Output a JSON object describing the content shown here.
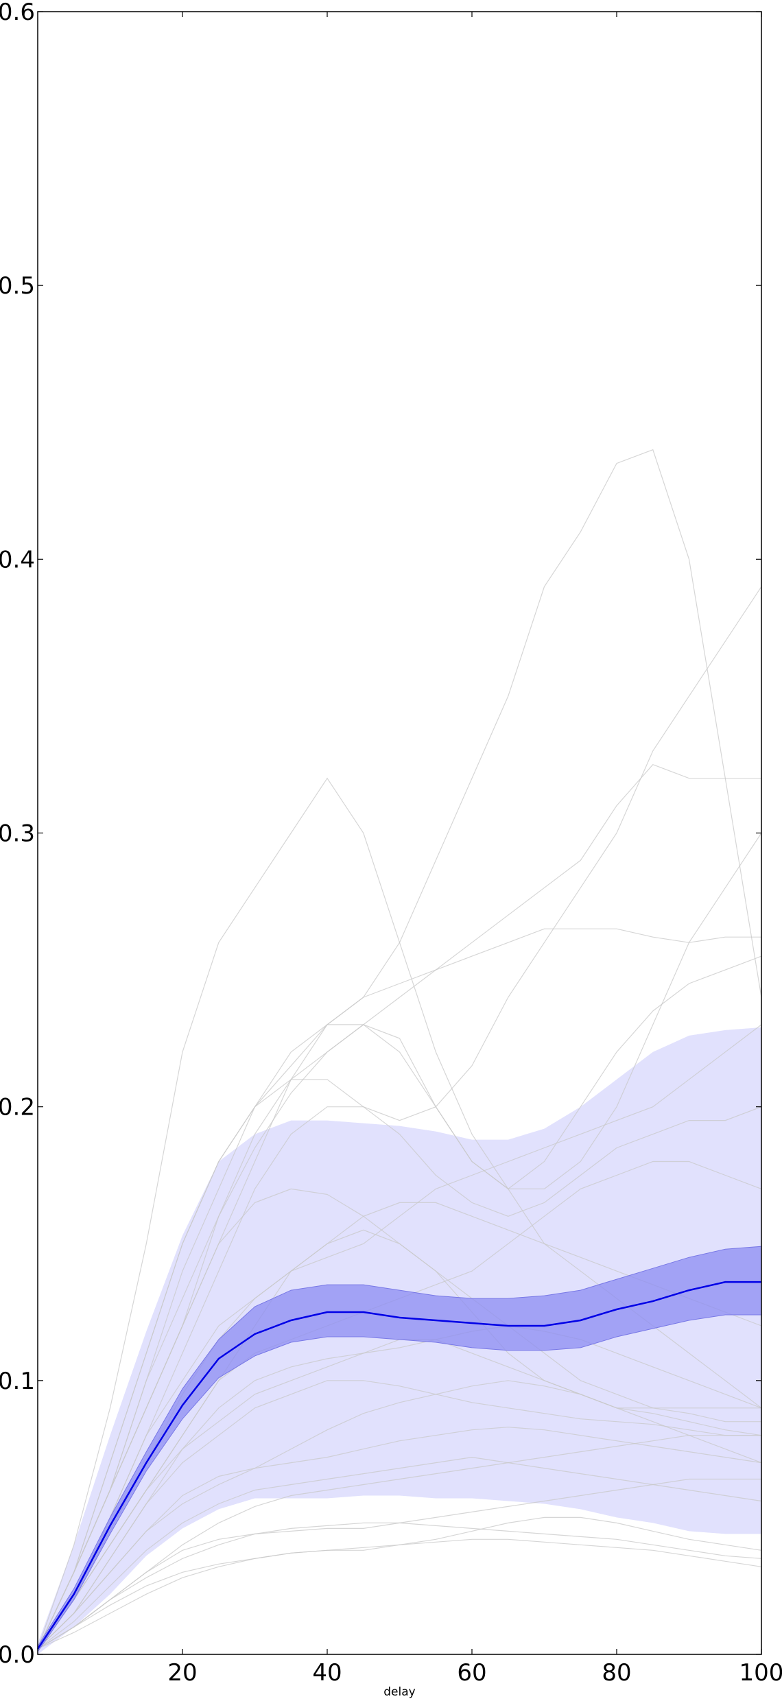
{
  "chart_data": {
    "type": "line",
    "title": "",
    "xlabel": "delay",
    "ylabel": "",
    "xlim": [
      0,
      100
    ],
    "ylim": [
      0.0,
      0.6
    ],
    "xticks": [
      20,
      40,
      60,
      80,
      100
    ],
    "xtick_labels": [
      "20",
      "40",
      "60",
      "80",
      "100"
    ],
    "yticks": [
      0.0,
      0.1,
      0.2,
      0.3,
      0.4,
      0.5,
      0.6
    ],
    "ytick_labels": [
      "0.0",
      "0.1",
      "0.2",
      "0.3",
      "0.4",
      "0.5",
      "0.6"
    ],
    "grid": false,
    "legend": "none",
    "colors": {
      "mean": "#0000e6",
      "inner_band": "#8c8cf2",
      "outer_band": "#e1e1fd",
      "individual": "#c8c8c8",
      "axes": "#000000"
    },
    "x": [
      0,
      5,
      10,
      15,
      20,
      25,
      30,
      35,
      40,
      45,
      50,
      55,
      60,
      65,
      70,
      75,
      80,
      85,
      90,
      95,
      100
    ],
    "series": [
      {
        "role": "mean",
        "values": [
          0.002,
          0.022,
          0.047,
          0.07,
          0.091,
          0.108,
          0.117,
          0.122,
          0.125,
          0.125,
          0.123,
          0.122,
          0.121,
          0.12,
          0.12,
          0.122,
          0.126,
          0.129,
          0.133,
          0.136,
          0.136
        ]
      },
      {
        "role": "inner_band_upper",
        "values": [
          0.003,
          0.024,
          0.05,
          0.074,
          0.097,
          0.115,
          0.127,
          0.133,
          0.135,
          0.135,
          0.133,
          0.131,
          0.13,
          0.13,
          0.131,
          0.133,
          0.137,
          0.141,
          0.145,
          0.148,
          0.149
        ]
      },
      {
        "role": "inner_band_lower",
        "values": [
          0.001,
          0.02,
          0.044,
          0.067,
          0.086,
          0.101,
          0.109,
          0.114,
          0.116,
          0.116,
          0.115,
          0.114,
          0.112,
          0.111,
          0.111,
          0.112,
          0.116,
          0.119,
          0.122,
          0.124,
          0.124
        ]
      },
      {
        "role": "outer_band_upper",
        "values": [
          0.004,
          0.04,
          0.08,
          0.118,
          0.153,
          0.18,
          0.19,
          0.195,
          0.195,
          0.194,
          0.193,
          0.191,
          0.188,
          0.188,
          0.192,
          0.2,
          0.21,
          0.22,
          0.226,
          0.228,
          0.229
        ]
      },
      {
        "role": "outer_band_lower",
        "values": [
          0.0,
          0.01,
          0.022,
          0.036,
          0.046,
          0.053,
          0.057,
          0.057,
          0.057,
          0.058,
          0.058,
          0.057,
          0.057,
          0.056,
          0.055,
          0.053,
          0.05,
          0.048,
          0.045,
          0.044,
          0.044
        ]
      },
      {
        "role": "individual",
        "values": [
          0.002,
          0.03,
          0.07,
          0.11,
          0.15,
          0.18,
          0.2,
          0.215,
          0.23,
          0.24,
          0.26,
          0.29,
          0.32,
          0.35,
          0.39,
          0.41,
          0.435,
          0.44,
          0.4,
          0.32,
          0.24
        ]
      },
      {
        "role": "individual",
        "values": [
          0.002,
          0.04,
          0.09,
          0.15,
          0.22,
          0.26,
          0.28,
          0.3,
          0.32,
          0.3,
          0.26,
          0.22,
          0.19,
          0.17,
          0.15,
          0.14,
          0.13,
          0.12,
          0.11,
          0.1,
          0.09
        ]
      },
      {
        "role": "individual",
        "values": [
          0.002,
          0.03,
          0.07,
          0.11,
          0.15,
          0.18,
          0.2,
          0.21,
          0.21,
          0.2,
          0.195,
          0.2,
          0.215,
          0.24,
          0.26,
          0.28,
          0.3,
          0.33,
          0.35,
          0.37,
          0.39
        ]
      },
      {
        "role": "individual",
        "values": [
          0.002,
          0.03,
          0.06,
          0.1,
          0.13,
          0.16,
          0.185,
          0.205,
          0.22,
          0.23,
          0.24,
          0.25,
          0.26,
          0.27,
          0.28,
          0.29,
          0.31,
          0.325,
          0.32,
          0.32,
          0.32
        ]
      },
      {
        "role": "individual",
        "values": [
          0.002,
          0.03,
          0.06,
          0.1,
          0.14,
          0.17,
          0.2,
          0.22,
          0.23,
          0.24,
          0.245,
          0.25,
          0.255,
          0.26,
          0.265,
          0.265,
          0.265,
          0.262,
          0.26,
          0.262,
          0.262
        ]
      },
      {
        "role": "individual",
        "values": [
          0.002,
          0.03,
          0.06,
          0.09,
          0.12,
          0.15,
          0.18,
          0.21,
          0.23,
          0.23,
          0.225,
          0.2,
          0.18,
          0.17,
          0.17,
          0.18,
          0.2,
          0.23,
          0.26,
          0.28,
          0.3
        ]
      },
      {
        "role": "individual",
        "values": [
          0.002,
          0.03,
          0.06,
          0.09,
          0.12,
          0.16,
          0.19,
          0.21,
          0.22,
          0.23,
          0.22,
          0.2,
          0.18,
          0.17,
          0.18,
          0.2,
          0.22,
          0.235,
          0.245,
          0.25,
          0.255
        ]
      },
      {
        "role": "individual",
        "values": [
          0.002,
          0.02,
          0.05,
          0.08,
          0.11,
          0.14,
          0.17,
          0.19,
          0.2,
          0.2,
          0.19,
          0.175,
          0.165,
          0.16,
          0.165,
          0.175,
          0.185,
          0.19,
          0.195,
          0.195,
          0.2
        ]
      },
      {
        "role": "individual",
        "values": [
          0.002,
          0.03,
          0.06,
          0.09,
          0.12,
          0.15,
          0.165,
          0.17,
          0.168,
          0.16,
          0.15,
          0.14,
          0.13,
          0.12,
          0.11,
          0.1,
          0.095,
          0.09,
          0.088,
          0.085,
          0.085
        ]
      },
      {
        "role": "individual",
        "values": [
          0.002,
          0.02,
          0.05,
          0.08,
          0.1,
          0.12,
          0.13,
          0.14,
          0.15,
          0.16,
          0.165,
          0.165,
          0.16,
          0.155,
          0.15,
          0.145,
          0.14,
          0.135,
          0.13,
          0.125,
          0.12
        ]
      },
      {
        "role": "individual",
        "values": [
          0.002,
          0.02,
          0.04,
          0.06,
          0.08,
          0.1,
          0.11,
          0.115,
          0.12,
          0.125,
          0.13,
          0.135,
          0.14,
          0.15,
          0.16,
          0.17,
          0.175,
          0.18,
          0.18,
          0.175,
          0.17
        ]
      },
      {
        "role": "individual",
        "values": [
          0.002,
          0.02,
          0.04,
          0.06,
          0.075,
          0.085,
          0.095,
          0.1,
          0.105,
          0.11,
          0.115,
          0.115,
          0.11,
          0.105,
          0.1,
          0.095,
          0.09,
          0.09,
          0.09,
          0.09,
          0.09
        ]
      },
      {
        "role": "individual",
        "values": [
          0.002,
          0.015,
          0.035,
          0.055,
          0.07,
          0.08,
          0.09,
          0.095,
          0.1,
          0.1,
          0.098,
          0.095,
          0.092,
          0.09,
          0.088,
          0.086,
          0.085,
          0.084,
          0.082,
          0.08,
          0.08
        ]
      },
      {
        "role": "individual",
        "values": [
          0.002,
          0.015,
          0.03,
          0.045,
          0.055,
          0.062,
          0.068,
          0.075,
          0.082,
          0.088,
          0.092,
          0.095,
          0.098,
          0.1,
          0.098,
          0.095,
          0.09,
          0.085,
          0.08,
          0.075,
          0.07
        ]
      },
      {
        "role": "individual",
        "values": [
          0.002,
          0.015,
          0.03,
          0.045,
          0.058,
          0.065,
          0.068,
          0.07,
          0.072,
          0.075,
          0.078,
          0.08,
          0.082,
          0.083,
          0.082,
          0.08,
          0.078,
          0.076,
          0.074,
          0.072,
          0.07
        ]
      },
      {
        "role": "individual",
        "values": [
          0.002,
          0.012,
          0.025,
          0.038,
          0.048,
          0.055,
          0.06,
          0.062,
          0.064,
          0.066,
          0.068,
          0.07,
          0.072,
          0.07,
          0.068,
          0.066,
          0.064,
          0.062,
          0.06,
          0.058,
          0.056
        ]
      },
      {
        "role": "individual",
        "values": [
          0.002,
          0.01,
          0.02,
          0.03,
          0.038,
          0.042,
          0.044,
          0.045,
          0.046,
          0.046,
          0.048,
          0.05,
          0.052,
          0.054,
          0.056,
          0.058,
          0.06,
          0.062,
          0.064,
          0.064,
          0.064
        ]
      },
      {
        "role": "individual",
        "values": [
          0.002,
          0.01,
          0.018,
          0.025,
          0.03,
          0.033,
          0.035,
          0.037,
          0.038,
          0.038,
          0.04,
          0.042,
          0.045,
          0.048,
          0.05,
          0.05,
          0.048,
          0.045,
          0.042,
          0.04,
          0.038
        ]
      },
      {
        "role": "individual",
        "values": [
          0.002,
          0.01,
          0.02,
          0.028,
          0.035,
          0.04,
          0.044,
          0.046,
          0.047,
          0.048,
          0.048,
          0.047,
          0.046,
          0.045,
          0.044,
          0.043,
          0.042,
          0.04,
          0.038,
          0.036,
          0.035
        ]
      },
      {
        "role": "individual",
        "values": [
          0.002,
          0.008,
          0.015,
          0.022,
          0.028,
          0.032,
          0.035,
          0.037,
          0.038,
          0.039,
          0.04,
          0.041,
          0.042,
          0.042,
          0.041,
          0.04,
          0.039,
          0.038,
          0.036,
          0.034,
          0.032
        ]
      },
      {
        "role": "individual",
        "values": [
          0.002,
          0.01,
          0.02,
          0.03,
          0.04,
          0.048,
          0.054,
          0.058,
          0.06,
          0.062,
          0.064,
          0.066,
          0.068,
          0.07,
          0.072,
          0.074,
          0.076,
          0.078,
          0.08,
          0.08,
          0.08
        ]
      },
      {
        "role": "individual",
        "values": [
          0.002,
          0.02,
          0.04,
          0.06,
          0.08,
          0.1,
          0.12,
          0.14,
          0.15,
          0.155,
          0.15,
          0.14,
          0.125,
          0.11,
          0.1,
          0.095,
          0.09,
          0.088,
          0.085,
          0.082,
          0.08
        ]
      },
      {
        "role": "individual",
        "values": [
          0.002,
          0.02,
          0.045,
          0.07,
          0.095,
          0.115,
          0.13,
          0.14,
          0.145,
          0.15,
          0.16,
          0.17,
          0.175,
          0.18,
          0.185,
          0.19,
          0.195,
          0.2,
          0.21,
          0.22,
          0.23
        ]
      },
      {
        "role": "individual",
        "values": [
          0.002,
          0.015,
          0.035,
          0.055,
          0.075,
          0.09,
          0.1,
          0.105,
          0.108,
          0.11,
          0.112,
          0.115,
          0.118,
          0.12,
          0.118,
          0.115,
          0.11,
          0.105,
          0.1,
          0.095,
          0.09
        ]
      }
    ]
  }
}
